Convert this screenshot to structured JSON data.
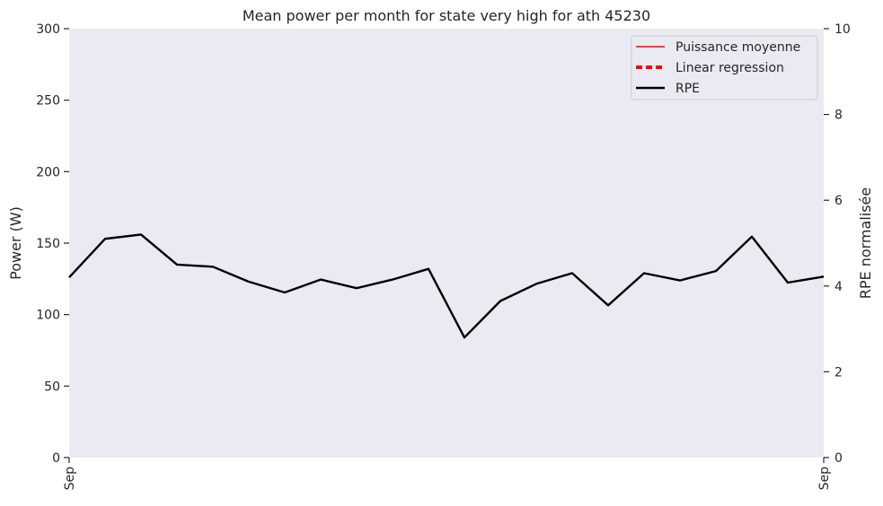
{
  "chart_data": {
    "type": "line",
    "title": "Mean power per month for state very high for ath 45230",
    "ylabel": "Power (W)",
    "y2label": "RPE normalisée",
    "ylim": [
      0,
      300
    ],
    "y2lim": [
      0,
      10
    ],
    "yticks": [
      0,
      50,
      100,
      150,
      200,
      250,
      300
    ],
    "y2ticks": [
      0,
      2,
      4,
      6,
      8,
      10
    ],
    "xticks": [
      "Sep",
      "Sep"
    ],
    "grid": false,
    "legend_position": "upper-right",
    "legend": [
      {
        "label": "Puissance moyenne",
        "color": "#ff0000",
        "style": "solid"
      },
      {
        "label": "Linear regression",
        "color": "#ff0000",
        "style": "dashed"
      },
      {
        "label": "RPE",
        "color": "#000000",
        "style": "solid"
      }
    ],
    "series": [
      {
        "name": "RPE",
        "axis": "right",
        "color": "#000000",
        "values": [
          4.2,
          5.1,
          5.2,
          4.5,
          4.45,
          4.1,
          3.85,
          4.15,
          3.95,
          4.15,
          4.4,
          2.8,
          3.65,
          4.05,
          4.3,
          3.55,
          4.3,
          4.13,
          4.35,
          5.15,
          4.08,
          4.22
        ]
      }
    ],
    "colors": {
      "plot_background": "#eaeaf2",
      "axis_text": "#262626"
    }
  }
}
